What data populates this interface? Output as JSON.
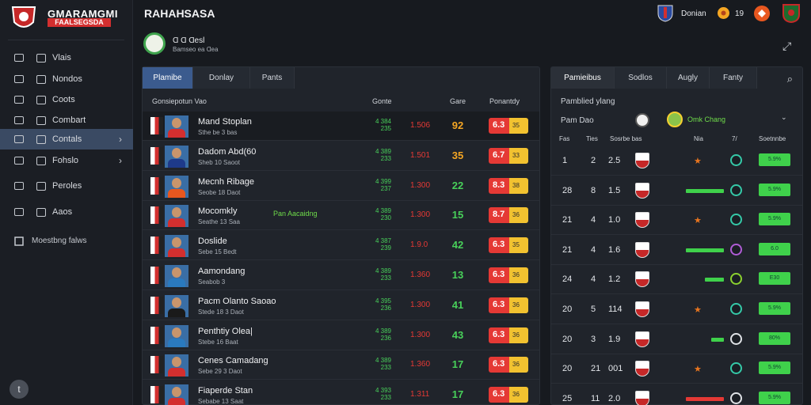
{
  "app": {
    "brand_line1": "GMARAMGMI",
    "brand_line2": "FAALSEGSDA",
    "title": "RAHAHSASA"
  },
  "header": {
    "user_label": "Donian",
    "count": "19"
  },
  "sidebar": {
    "items": [
      {
        "label": "Vlais",
        "icon": "grid-icon"
      },
      {
        "label": "Nondos",
        "icon": "calendar-icon"
      },
      {
        "label": "Coots",
        "icon": "book-icon"
      },
      {
        "label": "Combart",
        "icon": "pencil-icon"
      },
      {
        "label": "Contals",
        "icon": "shirt-icon",
        "active": true,
        "chevron": true
      },
      {
        "label": "Fohslo",
        "icon": "search-icon",
        "chevron": true
      },
      {
        "label": "Peroles",
        "icon": "home-icon"
      },
      {
        "label": "Aaos",
        "icon": "people-icon"
      }
    ],
    "footer_label": "Moestbng falws",
    "help_label": "t"
  },
  "profile": {
    "name": "Ɑ Ɑ Ɑesl",
    "sub": "Bamseo ea Ɑea"
  },
  "left_panel": {
    "tabs": [
      "Plamibe",
      "Donlay",
      "Pants"
    ],
    "columns": {
      "name": "Gonsiepotun Vao",
      "c1": "Gonte",
      "c2": "Gare",
      "c3": "Ponantdy"
    },
    "rows": [
      {
        "name": "Mand Stoplan",
        "sub": "Sthe be 3 bas",
        "note": "",
        "g1a": "4 384",
        "g1b": "235",
        "c2": "1.506",
        "c3": "92",
        "c3color": "#f5a623",
        "ba": "6.3",
        "bb": "35"
      },
      {
        "name": "Dadom Abd(60",
        "sub": "Sheb 10 Saoot",
        "note": "",
        "g1a": "4 389",
        "g1b": "233",
        "c2": "1.501",
        "c3": "35",
        "c3color": "#f5a623",
        "ba": "6.7",
        "bb": "33"
      },
      {
        "name": "Mecnh Ribage",
        "sub": "Seobe 18 Daot",
        "note": "",
        "g1a": "4 399",
        "g1b": "237",
        "c2": "1.300",
        "c3": "22",
        "c3color": "#48d05a",
        "ba": "8.3",
        "bb": "38"
      },
      {
        "name": "Mocomkly",
        "sub": "Seathe 13 Saa",
        "note": "Pan Aacaidng",
        "g1a": "4 389",
        "g1b": "230",
        "c2": "1.300",
        "c3": "15",
        "c3color": "#48d05a",
        "ba": "8.7",
        "bb": "36"
      },
      {
        "name": "Doslide",
        "sub": "Sebe 15 Bedt",
        "note": "",
        "g1a": "4 387",
        "g1b": "239",
        "c2": "1.9.0",
        "c3": "42",
        "c3color": "#48d05a",
        "ba": "6.3",
        "bb": "35"
      },
      {
        "name": "Aamondang",
        "sub": "Seabob 3",
        "note": "",
        "g1a": "4 389",
        "g1b": "233",
        "c2": "1.360",
        "c3": "13",
        "c3color": "#48d05a",
        "ba": "6.3",
        "bb": "36"
      },
      {
        "name": "Pacm Olanto Saoao",
        "sub": "Stede 18 3 Daot",
        "note": "",
        "g1a": "4 395",
        "g1b": "236",
        "c2": "1.300",
        "c3": "41",
        "c3color": "#48d05a",
        "ba": "6.3",
        "bb": "36"
      },
      {
        "name": "Penthtiy Olea|",
        "sub": "Stebe 16 Baat",
        "note": "",
        "g1a": "4 389",
        "g1b": "236",
        "c2": "1.300",
        "c3": "43",
        "c3color": "#48d05a",
        "ba": "6.3",
        "bb": "36"
      },
      {
        "name": "Cenes Camadang",
        "sub": "Sebe 29 3 Daot",
        "note": "",
        "g1a": "4 389",
        "g1b": "233",
        "c2": "1.360",
        "c3": "17",
        "c3color": "#48d05a",
        "ba": "6.3",
        "bb": "36"
      },
      {
        "name": "Fiaperde Stan",
        "sub": "Sebabe 13 Saat",
        "note": "",
        "g1a": "4 393",
        "g1b": "233",
        "c2": "1.311",
        "c3": "17",
        "c3color": "#48d05a",
        "ba": "6.3",
        "bb": "36"
      }
    ]
  },
  "right_panel": {
    "tabs": [
      "Pamieibus",
      "Sodlos",
      "Augly",
      "Fanty"
    ],
    "section_title": "Pamblied ylang",
    "team_label": "Pam Dao",
    "team_name": "Omk Chang",
    "columns": [
      "Fas",
      "Ties",
      "Sosrbe bas",
      "Nia",
      "7/",
      "Soetnnbe"
    ],
    "rows": [
      {
        "a": "1",
        "b": "2",
        "c": "2.5",
        "bar": 0,
        "barColor": "g",
        "badge": "5.9%"
      },
      {
        "a": "28",
        "b": "8",
        "c": "1.5",
        "bar": 0.6,
        "barColor": "g",
        "badge": "5.9%"
      },
      {
        "a": "21",
        "b": "4",
        "c": "1.0",
        "bar": 0,
        "barColor": "g",
        "badge": "5.9%"
      },
      {
        "a": "21",
        "b": "4",
        "c": "1.6",
        "bar": 0.6,
        "barColor": "g",
        "badge": "6.0"
      },
      {
        "a": "24",
        "b": "4",
        "c": "1.2",
        "bar": 0.3,
        "barColor": "g",
        "badge": "E30"
      },
      {
        "a": "20",
        "b": "5",
        "c": "114",
        "bar": 0,
        "barColor": "g",
        "badge": "5.9%"
      },
      {
        "a": "20",
        "b": "3",
        "c": "1.9",
        "bar": 0.2,
        "barColor": "g",
        "badge": "80%"
      },
      {
        "a": "20",
        "b": "21",
        "c": "001",
        "bar": 0,
        "barColor": "g",
        "badge": "5.9%"
      },
      {
        "a": "25",
        "b": "11",
        "c": "2.0",
        "bar": 0.6,
        "barColor": "r",
        "badge": "5.9%"
      }
    ]
  }
}
